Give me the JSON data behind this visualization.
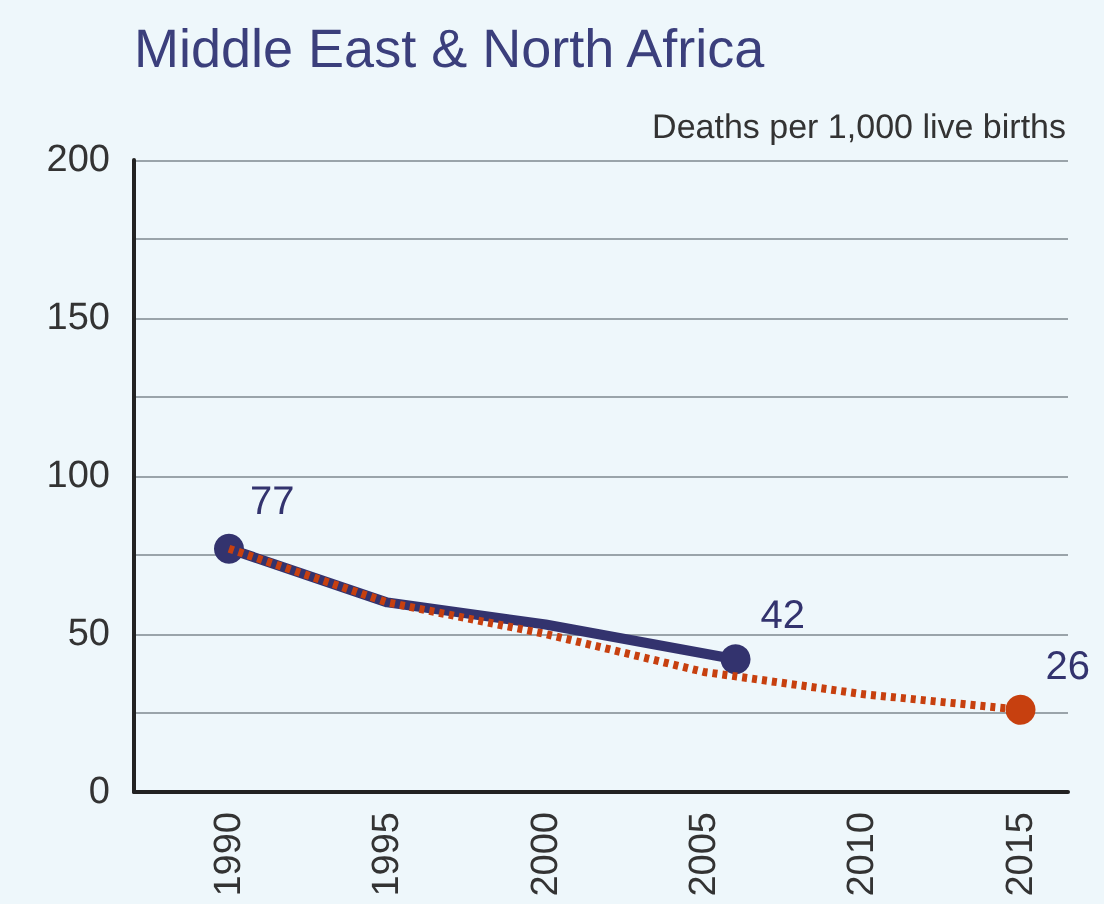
{
  "chart_data": {
    "type": "line",
    "title": "Middle East & North Africa",
    "ylabel": "Deaths per 1,000 live births",
    "xlim": [
      1987,
      2016.5
    ],
    "xticks": [
      1990,
      1995,
      2000,
      2005,
      2010,
      2015
    ],
    "ylim": [
      0,
      200
    ],
    "yticks": [
      0,
      {
        "value": 25,
        "label": null
      },
      50,
      {
        "value": 75,
        "label": null
      },
      100,
      {
        "value": 125,
        "label": null
      },
      150,
      {
        "value": 175,
        "label": null
      },
      200
    ],
    "grid": "y",
    "series": [
      {
        "color": "#c7400f",
        "line_style": "dotted",
        "x": [
          1990,
          1995,
          2000,
          2005,
          2010,
          2015
        ],
        "values": [
          77,
          60,
          50,
          38,
          31,
          26
        ],
        "value_labels": [
          null,
          null,
          null,
          null,
          null,
          "26"
        ]
      },
      {
        "color": "#33336e",
        "line_style": "solid",
        "x": [
          1990,
          1995,
          2000,
          2006
        ],
        "values": [
          77,
          60,
          53,
          42
        ],
        "value_labels": [
          "77",
          null,
          null,
          "42"
        ]
      }
    ]
  }
}
